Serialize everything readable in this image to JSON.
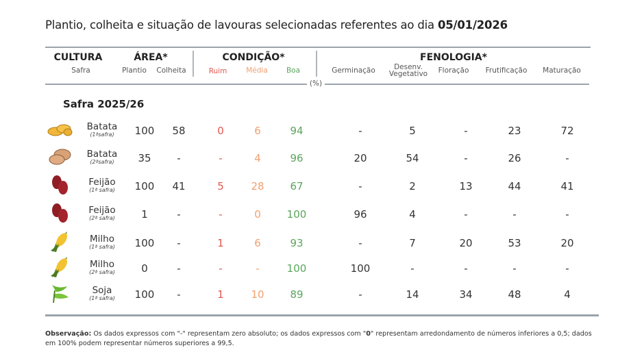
{
  "title": {
    "text": "Plantio, colheita e situação de lavouras selecionadas referentes ao dia ",
    "date": "05/01/2026"
  },
  "header": {
    "cultura": "CULTURA",
    "safra": "Safra",
    "area": "ÁREA*",
    "plantio": "Plantio",
    "colheita": "Colheita",
    "condicao": "CONDIÇÃO*",
    "ruim": "Ruim",
    "media": "Média",
    "boa": "Boa",
    "percent": "(%)",
    "fenologia": "FENOLOGIA*",
    "germinacao": "Germinação",
    "desenv1": "Desenv.",
    "desenv2": "Vegetativo",
    "floracao": "Floração",
    "frutificacao": "Frutificação",
    "maturacao": "Maturação"
  },
  "colors": {
    "ruim": "#e2574f",
    "media": "#f0a071",
    "boa": "#5aa55c"
  },
  "section": "Safra 2025/26",
  "rows": [
    {
      "crop": "Batata",
      "safra": "(1ªsafra)",
      "icon": "potato-yellow-icon",
      "plantio": "100",
      "colheita": "58",
      "ruim": "0",
      "media": "6",
      "boa": "94",
      "germinacao": "-",
      "desenv": "5",
      "floracao": "-",
      "frutificacao": "23",
      "maturacao": "72"
    },
    {
      "crop": "Batata",
      "safra": "(2ªsafra)",
      "icon": "potato-brown-icon",
      "plantio": "35",
      "colheita": "-",
      "ruim": "-",
      "media": "4",
      "boa": "96",
      "germinacao": "20",
      "desenv": "54",
      "floracao": "-",
      "frutificacao": "26",
      "maturacao": "-"
    },
    {
      "crop": "Feijão",
      "safra": "(1ª safra)",
      "icon": "bean-icon",
      "plantio": "100",
      "colheita": "41",
      "ruim": "5",
      "media": "28",
      "boa": "67",
      "germinacao": "-",
      "desenv": "2",
      "floracao": "13",
      "frutificacao": "44",
      "maturacao": "41"
    },
    {
      "crop": "Feijão",
      "safra": "(2ª safra)",
      "icon": "bean-icon",
      "plantio": "1",
      "colheita": "-",
      "ruim": "-",
      "media": "0",
      "boa": "100",
      "germinacao": "96",
      "desenv": "4",
      "floracao": "-",
      "frutificacao": "-",
      "maturacao": "-"
    },
    {
      "crop": "Milho",
      "safra": "(1ª safra)",
      "icon": "corn-icon",
      "plantio": "100",
      "colheita": "-",
      "ruim": "1",
      "media": "6",
      "boa": "93",
      "germinacao": "-",
      "desenv": "7",
      "floracao": "20",
      "frutificacao": "53",
      "maturacao": "20"
    },
    {
      "crop": "Milho",
      "safra": "(2ª safra)",
      "icon": "corn-icon",
      "plantio": "0",
      "colheita": "-",
      "ruim": "-",
      "media": "-",
      "boa": "100",
      "germinacao": "100",
      "desenv": "-",
      "floracao": "-",
      "frutificacao": "-",
      "maturacao": "-"
    },
    {
      "crop": "Soja",
      "safra": "(1ª safra)",
      "icon": "soybean-icon",
      "plantio": "100",
      "colheita": "-",
      "ruim": "1",
      "media": "10",
      "boa": "89",
      "germinacao": "-",
      "desenv": "14",
      "floracao": "34",
      "frutificacao": "48",
      "maturacao": "4"
    }
  ],
  "note": {
    "label": "Observação:",
    "text1": " Os dados expressos com \"-\" representam zero absoluto; os dados expressos com \"",
    "zero": "0",
    "text2": "\" representam arredondamento de números inferiores a 0,5; dados em 100% podem representar números superiores a 99,5."
  }
}
